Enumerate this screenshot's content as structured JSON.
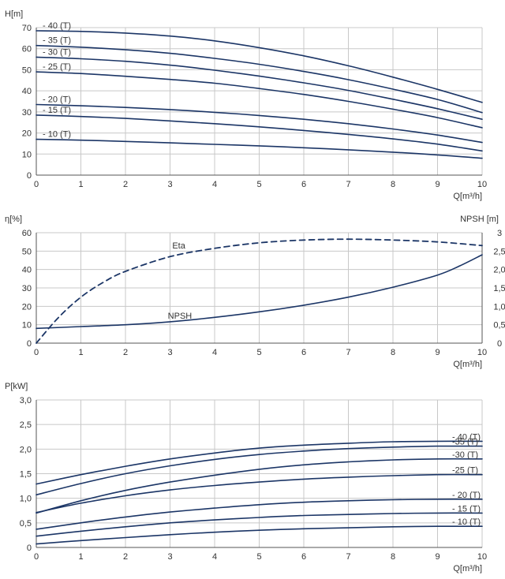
{
  "colors": {
    "curve": "#1b3566",
    "grid": "#c8c8c8",
    "axis": "#555555",
    "text": "#333333"
  },
  "chart_data": [
    {
      "id": "head",
      "type": "line",
      "xlabel": "Q[m³/h]",
      "ylabel": "H[m]",
      "xlim": [
        0,
        10
      ],
      "ylim": [
        0,
        70
      ],
      "xticks": [
        0,
        1,
        2,
        3,
        4,
        5,
        6,
        7,
        8,
        9,
        10
      ],
      "yticks": [
        0,
        10,
        20,
        30,
        40,
        50,
        60,
        70
      ],
      "grid": true,
      "series": [
        {
          "name": "- 40 (T)",
          "x": [
            0,
            1,
            2,
            3,
            4,
            5,
            6,
            7,
            8,
            9,
            10
          ],
          "y": [
            68.5,
            68.2,
            67.4,
            66.0,
            63.7,
            60.5,
            56.6,
            51.9,
            46.5,
            40.7,
            34.5
          ]
        },
        {
          "name": "- 35 (T)",
          "x": [
            0,
            1,
            2,
            3,
            4,
            5,
            6,
            7,
            8,
            9,
            10
          ],
          "y": [
            61.5,
            60.7,
            59.5,
            57.8,
            55.4,
            52.6,
            49.2,
            45.3,
            40.8,
            35.9,
            29.7
          ]
        },
        {
          "name": "- 30 (T)",
          "x": [
            0,
            1,
            2,
            3,
            4,
            5,
            6,
            7,
            8,
            9,
            10
          ],
          "y": [
            56.0,
            55.2,
            54.0,
            52.2,
            49.8,
            47.0,
            43.8,
            40.2,
            36.0,
            31.5,
            26.5
          ]
        },
        {
          "name": "- 25 (T)",
          "x": [
            0,
            1,
            2,
            3,
            4,
            5,
            6,
            7,
            8,
            9,
            10
          ],
          "y": [
            49.0,
            48.2,
            46.9,
            45.4,
            43.6,
            41.1,
            38.3,
            35.0,
            31.3,
            27.3,
            22.5
          ]
        },
        {
          "name": "- 20 (T)",
          "x": [
            0,
            1,
            2,
            3,
            4,
            5,
            6,
            7,
            8,
            9,
            10
          ],
          "y": [
            33.5,
            32.9,
            32.1,
            31.1,
            29.8,
            28.3,
            26.5,
            24.4,
            21.9,
            19.0,
            15.5
          ]
        },
        {
          "name": "- 15 (T)",
          "x": [
            0,
            1,
            2,
            3,
            4,
            5,
            6,
            7,
            8,
            9,
            10
          ],
          "y": [
            28.5,
            27.8,
            26.9,
            25.7,
            24.4,
            22.9,
            21.2,
            19.3,
            17.2,
            14.7,
            11.5
          ]
        },
        {
          "name": "- 10 (T)",
          "x": [
            0,
            1,
            2,
            3,
            4,
            5,
            6,
            7,
            8,
            9,
            10
          ],
          "y": [
            17.0,
            16.6,
            16.0,
            15.3,
            14.6,
            13.9,
            13.0,
            12.0,
            10.9,
            9.6,
            8.0
          ]
        }
      ]
    },
    {
      "id": "efficiency",
      "type": "line",
      "xlabel": "Q[m³/h]",
      "ylabel": "η[%]",
      "y2label": "NPSH [m]",
      "xlim": [
        0,
        10
      ],
      "ylim": [
        0,
        60
      ],
      "y2lim": [
        0,
        3
      ],
      "xticks": [
        0,
        1,
        2,
        3,
        4,
        5,
        6,
        7,
        8,
        9,
        10
      ],
      "yticks": [
        0,
        10,
        20,
        30,
        40,
        50,
        60
      ],
      "y2ticks": [
        "0",
        "0,5",
        "1,0",
        "1,5",
        "2,0",
        "2,5",
        "3"
      ],
      "grid": true,
      "series": [
        {
          "name": "Eta",
          "axis": "left",
          "style": "dashed",
          "x": [
            0,
            0.5,
            1,
            1.5,
            2,
            3,
            4,
            5,
            6,
            7,
            8,
            9,
            10
          ],
          "y": [
            0,
            14,
            25,
            33,
            39,
            47,
            51.5,
            54.5,
            56,
            56.5,
            56,
            55,
            53
          ]
        },
        {
          "name": "NPSH",
          "axis": "right",
          "style": "solid",
          "x": [
            0,
            1,
            2,
            3,
            4,
            5,
            6,
            7,
            8,
            9,
            9.5,
            10
          ],
          "y": [
            0.4,
            0.45,
            0.5,
            0.58,
            0.7,
            0.85,
            1.03,
            1.25,
            1.52,
            1.85,
            2.1,
            2.4
          ]
        }
      ]
    },
    {
      "id": "power",
      "type": "line",
      "xlabel": "Q[m³/h]",
      "ylabel": "P[kW]",
      "xlim": [
        0,
        10
      ],
      "ylim": [
        0,
        3
      ],
      "xticks": [
        0,
        1,
        2,
        3,
        4,
        5,
        6,
        7,
        8,
        9,
        10
      ],
      "yticks": [
        "0",
        "0,5",
        "1,0",
        "1,5",
        "2,0",
        "2,5",
        "3,0"
      ],
      "grid": true,
      "series": [
        {
          "name": "- 40 (T)",
          "x": [
            0,
            1,
            2,
            3,
            4,
            5,
            6,
            7,
            8,
            9,
            10
          ],
          "y": [
            1.29,
            1.48,
            1.65,
            1.8,
            1.92,
            2.02,
            2.08,
            2.12,
            2.15,
            2.16,
            2.16
          ]
        },
        {
          "name": "-35 (T)",
          "x": [
            0,
            1,
            2,
            3,
            4,
            5,
            6,
            7,
            8,
            9,
            10
          ],
          "y": [
            1.07,
            1.3,
            1.5,
            1.66,
            1.79,
            1.89,
            1.96,
            2.01,
            2.04,
            2.06,
            2.06
          ]
        },
        {
          "name": "-30 (T)",
          "x": [
            0,
            1,
            2,
            3,
            4,
            5,
            6,
            7,
            8,
            9,
            10
          ],
          "y": [
            0.7,
            0.95,
            1.16,
            1.33,
            1.47,
            1.59,
            1.68,
            1.74,
            1.78,
            1.8,
            1.8
          ]
        },
        {
          "name": "-25 (T)",
          "x": [
            0,
            1,
            2,
            3,
            4,
            5,
            6,
            7,
            8,
            9,
            10
          ],
          "y": [
            0.71,
            0.9,
            1.05,
            1.17,
            1.26,
            1.33,
            1.39,
            1.43,
            1.46,
            1.48,
            1.48
          ]
        },
        {
          "name": "- 20 (T)",
          "x": [
            0,
            1,
            2,
            3,
            4,
            5,
            6,
            7,
            8,
            9,
            10
          ],
          "y": [
            0.37,
            0.5,
            0.62,
            0.72,
            0.8,
            0.87,
            0.92,
            0.95,
            0.97,
            0.98,
            0.98
          ]
        },
        {
          "name": "- 15 (T)",
          "x": [
            0,
            1,
            2,
            3,
            4,
            5,
            6,
            7,
            8,
            9,
            10
          ],
          "y": [
            0.23,
            0.33,
            0.42,
            0.5,
            0.56,
            0.61,
            0.65,
            0.67,
            0.69,
            0.7,
            0.7
          ]
        },
        {
          "name": "- 10 (T)",
          "x": [
            0,
            1,
            2,
            3,
            4,
            5,
            6,
            7,
            8,
            9,
            10
          ],
          "y": [
            0.07,
            0.14,
            0.2,
            0.26,
            0.31,
            0.35,
            0.38,
            0.4,
            0.42,
            0.43,
            0.43
          ]
        }
      ]
    }
  ]
}
